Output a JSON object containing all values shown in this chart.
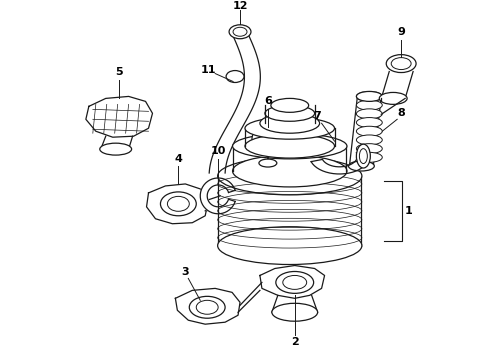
{
  "bg_color": "#ffffff",
  "line_color": "#1a1a1a",
  "label_color": "#000000",
  "figsize": [
    4.9,
    3.6
  ],
  "dpi": 100,
  "label_fs": 8,
  "lw": 0.9
}
